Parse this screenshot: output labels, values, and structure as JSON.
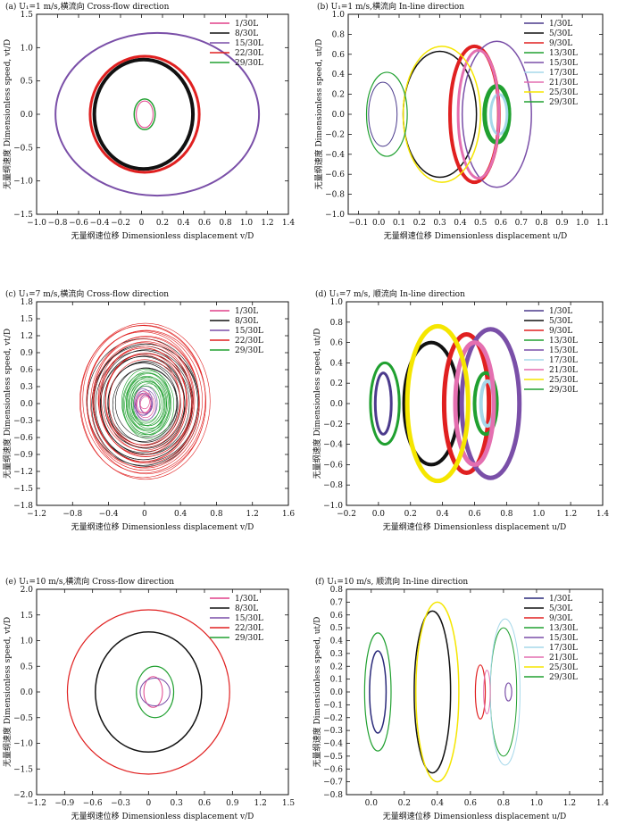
{
  "chart_data": [
    {
      "type": "line",
      "panel": "a",
      "title": "(a) U₁=1 m/s,横流向 Cross-flow direction",
      "xlabel": "无量纲速位移 Dimensionless displacement v/D",
      "ylabel": "无量纲速度 Dimensionless speed, vt/D",
      "xlim": [
        -1.0,
        1.4
      ],
      "ylim": [
        -1.5,
        1.5
      ],
      "xticks": [
        "−1.0",
        "−0.8",
        "−0.6",
        "−0.4",
        "−0.2",
        "0",
        "0.2",
        "0.4",
        "0.6",
        "0.8",
        "1.0",
        "1.2",
        "1.4"
      ],
      "xtick_values": [
        -1.0,
        -0.8,
        -0.6,
        -0.4,
        -0.2,
        0,
        0.2,
        0.4,
        0.6,
        0.8,
        1.0,
        1.2,
        1.4
      ],
      "yticks": [
        "−1.5",
        "−1.0",
        "−0.5",
        "0.0",
        "0.5",
        "1.0",
        "1.5"
      ],
      "ytick_values": [
        -1.5,
        -1.0,
        -0.5,
        0,
        0.5,
        1.0,
        1.5
      ],
      "legend_position": "top-right",
      "series": [
        {
          "name": "1/30L",
          "color": "#e0408a",
          "cx": 0.03,
          "cy": 0.0,
          "rx": 0.08,
          "ry": 0.2,
          "width": 1
        },
        {
          "name": "8/30L",
          "color": "#111111",
          "cx": 0.02,
          "cy": 0.0,
          "rx": 0.47,
          "ry": 0.82,
          "width": 4
        },
        {
          "name": "15/30L",
          "color": "#7a4fa8",
          "cx": 0.15,
          "cy": 0.0,
          "rx": 0.97,
          "ry": 1.22,
          "width": 2
        },
        {
          "name": "22/30L",
          "color": "#e02020",
          "cx": 0.03,
          "cy": 0.0,
          "rx": 0.52,
          "ry": 0.87,
          "width": 3
        },
        {
          "name": "29/30L",
          "color": "#20a030",
          "cx": 0.03,
          "cy": 0.0,
          "rx": 0.1,
          "ry": 0.23,
          "width": 1.5
        }
      ]
    },
    {
      "type": "line",
      "panel": "b",
      "title": "(b) U₁=1 m/s,横流向 In-line direction",
      "xlabel": "无量纲速位移 Dimensionless displacement u/D",
      "ylabel": "无量纲速度 Dimensionless speed, ut/D",
      "xlim": [
        -0.15,
        1.1
      ],
      "ylim": [
        -1.0,
        1.0
      ],
      "xticks": [
        "−0.1",
        "0.0",
        "0.1",
        "0.2",
        "0.3",
        "0.4",
        "0.5",
        "0.6",
        "0.7",
        "0.8",
        "0.9",
        "1.0",
        "1.1"
      ],
      "xtick_values": [
        -0.1,
        0,
        0.1,
        0.2,
        0.3,
        0.4,
        0.5,
        0.6,
        0.7,
        0.8,
        0.9,
        1.0,
        1.1
      ],
      "yticks": [
        "−1.0",
        "−0.8",
        "−0.6",
        "−0.4",
        "−0.2",
        "0.0",
        "0.2",
        "0.4",
        "0.6",
        "0.8",
        "1.0"
      ],
      "ytick_values": [
        -1.0,
        -0.8,
        -0.6,
        -0.4,
        -0.2,
        0,
        0.2,
        0.4,
        0.6,
        0.8,
        1.0
      ],
      "legend_position": "top-right",
      "series": [
        {
          "name": "1/30L",
          "color": "#4b3a8c",
          "cx": 0.02,
          "cy": 0.0,
          "rx": 0.07,
          "ry": 0.32,
          "width": 1
        },
        {
          "name": "5/30L",
          "color": "#111111",
          "cx": 0.3,
          "cy": 0.0,
          "rx": 0.18,
          "ry": 0.63,
          "width": 1.5
        },
        {
          "name": "9/30L",
          "color": "#e02020",
          "cx": 0.47,
          "cy": 0.0,
          "rx": 0.12,
          "ry": 0.68,
          "width": 4
        },
        {
          "name": "13/30L",
          "color": "#20a030",
          "cx": 0.58,
          "cy": 0.0,
          "rx": 0.06,
          "ry": 0.28,
          "width": 5
        },
        {
          "name": "15/30L",
          "color": "#7a4fa8",
          "cx": 0.58,
          "cy": 0.0,
          "rx": 0.17,
          "ry": 0.73,
          "width": 1.5
        },
        {
          "name": "17/30L",
          "color": "#a6d8ea",
          "cx": 0.59,
          "cy": 0.0,
          "rx": 0.04,
          "ry": 0.2,
          "width": 3
        },
        {
          "name": "21/30L",
          "color": "#e46fb0",
          "cx": 0.49,
          "cy": 0.0,
          "rx": 0.1,
          "ry": 0.64,
          "width": 3
        },
        {
          "name": "25/30L",
          "color": "#f5e600",
          "cx": 0.31,
          "cy": 0.0,
          "rx": 0.19,
          "ry": 0.68,
          "width": 1.5
        },
        {
          "name": "29/30L",
          "color": "#20a030",
          "cx": 0.04,
          "cy": 0.0,
          "rx": 0.1,
          "ry": 0.42,
          "width": 1.2
        }
      ]
    },
    {
      "type": "line",
      "panel": "c",
      "title": "(c) U₁=7 m/s,横流向 Cross-flow direction",
      "xlabel": "无量纲速位移 Dimensionless displacement v/D",
      "ylabel": "无量纲速度 Dimensionless speed, vt/D",
      "xlim": [
        -1.2,
        1.6
      ],
      "ylim": [
        -1.8,
        1.8
      ],
      "xticks": [
        "−1.2",
        "−0.8",
        "−0.4",
        "0",
        "0.4",
        "0.8",
        "1.2",
        "1.6"
      ],
      "xtick_values": [
        -1.2,
        -0.8,
        -0.4,
        0,
        0.4,
        0.8,
        1.2,
        1.6
      ],
      "yticks": [
        "−1.8",
        "−1.5",
        "−1.2",
        "−0.9",
        "−0.6",
        "−0.3",
        "0.0",
        "0.3",
        "0.6",
        "0.9",
        "1.2",
        "1.5",
        "1.8"
      ],
      "ytick_values": [
        -1.8,
        -1.5,
        -1.2,
        -0.9,
        -0.6,
        -0.3,
        0,
        0.3,
        0.6,
        0.9,
        1.2,
        1.5,
        1.8
      ],
      "legend_position": "top-right",
      "series": [
        {
          "name": "1/30L",
          "color": "#e0408a",
          "cx": 0.0,
          "cy": 0.0,
          "rx": 0.1,
          "ry": 0.22,
          "width": 0.6,
          "rings": 5
        },
        {
          "name": "8/30L",
          "color": "#111111",
          "cx": 0.0,
          "cy": 0.0,
          "rx": 0.62,
          "ry": 1.12,
          "width": 0.6,
          "rings": 14
        },
        {
          "name": "15/30L",
          "color": "#7a4fa8",
          "cx": 0.0,
          "cy": 0.0,
          "rx": 0.13,
          "ry": 0.3,
          "width": 0.6,
          "rings": 5
        },
        {
          "name": "22/30L",
          "color": "#e02020",
          "cx": 0.0,
          "cy": 0.05,
          "rx": 0.72,
          "ry": 1.38,
          "width": 0.6,
          "rings": 18
        },
        {
          "name": "29/30L",
          "color": "#20a030",
          "cx": 0.03,
          "cy": 0.0,
          "rx": 0.28,
          "ry": 0.6,
          "width": 0.6,
          "rings": 14
        }
      ]
    },
    {
      "type": "line",
      "panel": "d",
      "title": "(d) U₁=7 m/s, 顺流向 In-line direction",
      "xlabel": "无量纲速位移 Dimensionless displacement u/D",
      "ylabel": "无量纲速度 Dimensionless speed, ut/D",
      "xlim": [
        -0.2,
        1.4
      ],
      "ylim": [
        -1.0,
        1.0
      ],
      "xticks": [
        "−0.2",
        "0.0",
        "0.2",
        "0.4",
        "0.6",
        "0.8",
        "1.0",
        "1.2",
        "1.4"
      ],
      "xtick_values": [
        -0.2,
        0,
        0.2,
        0.4,
        0.6,
        0.8,
        1.0,
        1.2,
        1.4
      ],
      "yticks": [
        "−1.0",
        "−0.8",
        "−0.6",
        "−0.4",
        "−0.2",
        "0.0",
        "0.2",
        "0.4",
        "0.6",
        "0.8",
        "1.0"
      ],
      "ytick_values": [
        -1.0,
        -0.8,
        -0.6,
        -0.4,
        -0.2,
        0,
        0.2,
        0.4,
        0.6,
        0.8,
        1.0
      ],
      "legend_position": "top-right",
      "series": [
        {
          "name": "1/30L",
          "color": "#4b3a8c",
          "cx": 0.03,
          "cy": 0.0,
          "rx": 0.05,
          "ry": 0.3,
          "width": 3
        },
        {
          "name": "5/30L",
          "color": "#111111",
          "cx": 0.33,
          "cy": 0.0,
          "rx": 0.17,
          "ry": 0.6,
          "width": 4
        },
        {
          "name": "9/30L",
          "color": "#e02020",
          "cx": 0.55,
          "cy": 0.0,
          "rx": 0.14,
          "ry": 0.68,
          "width": 5
        },
        {
          "name": "13/30L",
          "color": "#20a030",
          "cx": 0.67,
          "cy": 0.0,
          "rx": 0.07,
          "ry": 0.3,
          "width": 4
        },
        {
          "name": "15/30L",
          "color": "#7a4fa8",
          "cx": 0.7,
          "cy": 0.0,
          "rx": 0.18,
          "ry": 0.73,
          "width": 5
        },
        {
          "name": "17/30L",
          "color": "#a6d8ea",
          "cx": 0.68,
          "cy": 0.0,
          "rx": 0.04,
          "ry": 0.22,
          "width": 4
        },
        {
          "name": "21/30L",
          "color": "#e46fb0",
          "cx": 0.6,
          "cy": 0.0,
          "rx": 0.12,
          "ry": 0.6,
          "width": 5
        },
        {
          "name": "25/30L",
          "color": "#f5e600",
          "cx": 0.37,
          "cy": 0.0,
          "rx": 0.19,
          "ry": 0.76,
          "width": 5
        },
        {
          "name": "29/30L",
          "color": "#20a030",
          "cx": 0.04,
          "cy": 0.0,
          "rx": 0.09,
          "ry": 0.4,
          "width": 3
        }
      ]
    },
    {
      "type": "line",
      "panel": "e",
      "title": "(e) U₁=10 m/s,横流向 Cross-flow direction",
      "xlabel": "无量纲速位移 Dimensionless displacement v/D",
      "ylabel": "无量纲速度 Dimensionless speed, vt/D",
      "xlim": [
        -1.2,
        1.5
      ],
      "ylim": [
        -2.0,
        2.0
      ],
      "xticks": [
        "−1.2",
        "−0.9",
        "−0.6",
        "−0.3",
        "0",
        "0.3",
        "0.6",
        "0.9",
        "1.2",
        "1.5"
      ],
      "xtick_values": [
        -1.2,
        -0.9,
        -0.6,
        -0.3,
        0,
        0.3,
        0.6,
        0.9,
        1.2,
        1.5
      ],
      "yticks": [
        "−2.0",
        "−1.5",
        "−1.0",
        "−0.5",
        "0.0",
        "0.5",
        "1.0",
        "1.5",
        "2.0"
      ],
      "ytick_values": [
        -2.0,
        -1.5,
        -1.0,
        -0.5,
        0,
        0.5,
        1.0,
        1.5,
        2.0
      ],
      "legend_position": "top-right",
      "series": [
        {
          "name": "1/30L",
          "color": "#e0408a",
          "cx": 0.05,
          "cy": 0.0,
          "rx": 0.1,
          "ry": 0.3,
          "width": 1
        },
        {
          "name": "8/30L",
          "color": "#111111",
          "cx": 0.0,
          "cy": 0.0,
          "rx": 0.57,
          "ry": 1.17,
          "width": 1.5
        },
        {
          "name": "15/30L",
          "color": "#7a4fa8",
          "cx": 0.07,
          "cy": 0.0,
          "rx": 0.16,
          "ry": 0.27,
          "width": 1
        },
        {
          "name": "22/30L",
          "color": "#e02020",
          "cx": 0.0,
          "cy": 0.0,
          "rx": 0.87,
          "ry": 1.6,
          "width": 1.2
        },
        {
          "name": "29/30L",
          "color": "#20a030",
          "cx": 0.07,
          "cy": 0.0,
          "rx": 0.2,
          "ry": 0.5,
          "width": 1.2
        }
      ]
    },
    {
      "type": "line",
      "panel": "f",
      "title": "(f) U₁=10 m/s, 顺流向 In-line direction",
      "xlabel": "无量纲速位移 Dimensionless displacement u/D",
      "ylabel": "无量纲速度 Dimensionless speed, ut/D",
      "xlim": [
        -0.15,
        1.4
      ],
      "ylim": [
        -0.8,
        0.8
      ],
      "xticks": [
        "0.0",
        "0.2",
        "0.4",
        "0.6",
        "0.8",
        "1.0",
        "1.2",
        "1.4"
      ],
      "xtick_values": [
        0,
        0.2,
        0.4,
        0.6,
        0.8,
        1.0,
        1.2,
        1.4
      ],
      "yticks": [
        "−0.8",
        "−0.7",
        "−0.6",
        "−0.5",
        "−0.4",
        "−0.3",
        "−0.2",
        "−0.1",
        "0.0",
        "0.1",
        "0.2",
        "0.3",
        "0.4",
        "0.5",
        "0.6",
        "0.7",
        "0.8"
      ],
      "ytick_values": [
        -0.8,
        -0.7,
        -0.6,
        -0.5,
        -0.4,
        -0.3,
        -0.2,
        -0.1,
        0,
        0.1,
        0.2,
        0.3,
        0.4,
        0.5,
        0.6,
        0.7,
        0.8
      ],
      "legend_position": "top-right",
      "series": [
        {
          "name": "1/30L",
          "color": "#2a2a7a",
          "cx": 0.04,
          "cy": 0.0,
          "rx": 0.05,
          "ry": 0.32,
          "width": 1.5
        },
        {
          "name": "5/30L",
          "color": "#111111",
          "cx": 0.37,
          "cy": 0.0,
          "rx": 0.11,
          "ry": 0.63,
          "width": 1.5
        },
        {
          "name": "9/30L",
          "color": "#e02020",
          "cx": 0.66,
          "cy": 0.0,
          "rx": 0.03,
          "ry": 0.21,
          "width": 1.2
        },
        {
          "name": "13/30L",
          "color": "#20a030",
          "cx": 0.8,
          "cy": 0.0,
          "rx": 0.08,
          "ry": 0.5,
          "width": 1
        },
        {
          "name": "15/30L",
          "color": "#7a4fa8",
          "cx": 0.83,
          "cy": 0.0,
          "rx": 0.02,
          "ry": 0.07,
          "width": 1.2
        },
        {
          "name": "17/30L",
          "color": "#a6d8ea",
          "cx": 0.81,
          "cy": 0.0,
          "rx": 0.09,
          "ry": 0.57,
          "width": 1
        },
        {
          "name": "21/30L",
          "color": "#e46fb0",
          "cx": 0.7,
          "cy": 0.0,
          "rx": 0.02,
          "ry": 0.17,
          "width": 1
        },
        {
          "name": "25/30L",
          "color": "#f5e600",
          "cx": 0.4,
          "cy": 0.0,
          "rx": 0.13,
          "ry": 0.7,
          "width": 1.5
        },
        {
          "name": "29/30L",
          "color": "#20a030",
          "cx": 0.04,
          "cy": 0.0,
          "rx": 0.08,
          "ry": 0.46,
          "width": 1.2
        }
      ]
    }
  ]
}
